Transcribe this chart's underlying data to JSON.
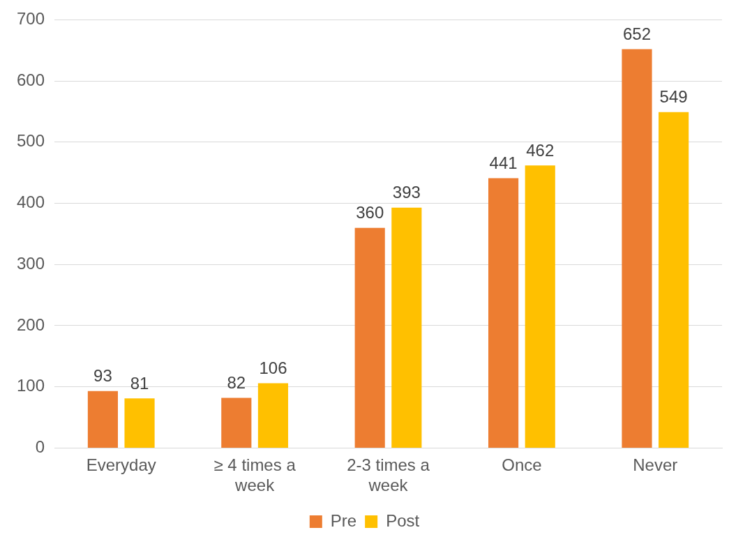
{
  "chart_data": {
    "type": "bar",
    "categories": [
      "Everyday",
      "≥ 4 times a week",
      "2-3 times a week",
      "Once",
      "Never"
    ],
    "series": [
      {
        "name": "Pre",
        "color": "#ed7d31",
        "values": [
          93,
          82,
          360,
          441,
          652
        ]
      },
      {
        "name": "Post",
        "color": "#ffc000",
        "values": [
          81,
          106,
          393,
          462,
          549
        ]
      }
    ],
    "ylim": [
      0,
      700
    ],
    "yticks": [
      0,
      100,
      200,
      300,
      400,
      500,
      600,
      700
    ],
    "grid": "y",
    "legend": "bottom",
    "data_labels": true
  }
}
